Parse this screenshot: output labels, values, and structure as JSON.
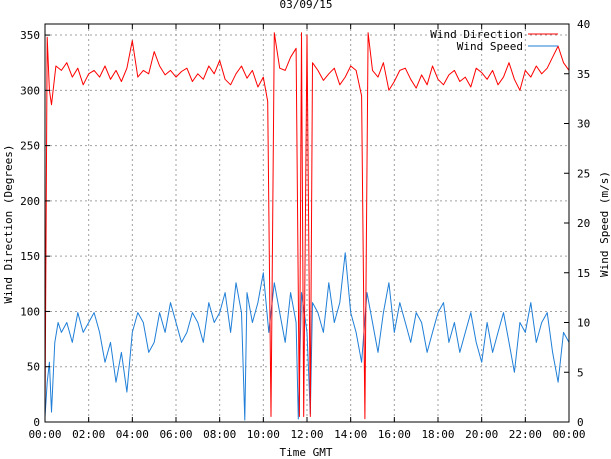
{
  "chart_data": {
    "type": "line",
    "title": "03/09/15",
    "xlabel": "Time GMT",
    "ylabel_left": "Wind Direction (Degrees)",
    "ylabel_right": "Wind Speed (m/s)",
    "x_tick_labels": [
      "00:00",
      "02:00",
      "04:00",
      "06:00",
      "08:00",
      "10:00",
      "12:00",
      "14:00",
      "16:00",
      "18:00",
      "20:00",
      "22:00",
      "00:00"
    ],
    "xlim_hours": [
      0,
      24
    ],
    "ylim_left": [
      0,
      360
    ],
    "y_ticks_left": [
      0,
      50,
      100,
      150,
      200,
      250,
      300,
      350
    ],
    "ylim_right": [
      0,
      40
    ],
    "y_ticks_right": [
      0,
      5,
      10,
      15,
      20,
      25,
      30,
      35,
      40
    ],
    "grid": true,
    "legend_position": "top-right",
    "series": [
      {
        "name": "Wind Direction",
        "color": "#ff0000",
        "axis": "left",
        "x_hours": [
          0.0,
          0.1,
          0.2,
          0.3,
          0.5,
          0.75,
          1.0,
          1.25,
          1.5,
          1.75,
          2.0,
          2.25,
          2.5,
          2.75,
          3.0,
          3.25,
          3.5,
          3.75,
          4.0,
          4.25,
          4.5,
          4.75,
          5.0,
          5.25,
          5.5,
          5.75,
          6.0,
          6.25,
          6.5,
          6.75,
          7.0,
          7.25,
          7.5,
          7.75,
          8.0,
          8.25,
          8.5,
          8.75,
          9.0,
          9.25,
          9.5,
          9.75,
          10.0,
          10.2,
          10.35,
          10.5,
          10.75,
          11.0,
          11.25,
          11.5,
          11.65,
          11.75,
          11.85,
          12.0,
          12.15,
          12.25,
          12.5,
          12.75,
          13.0,
          13.25,
          13.5,
          13.75,
          14.0,
          14.25,
          14.5,
          14.65,
          14.8,
          15.0,
          15.25,
          15.5,
          15.75,
          16.0,
          16.25,
          16.5,
          16.75,
          17.0,
          17.25,
          17.5,
          17.75,
          18.0,
          18.25,
          18.5,
          18.75,
          19.0,
          19.25,
          19.5,
          19.75,
          20.0,
          20.25,
          20.5,
          20.75,
          21.0,
          21.25,
          21.5,
          21.75,
          22.0,
          22.25,
          22.5,
          22.75,
          23.0,
          23.25,
          23.5,
          23.75,
          24.0
        ],
        "values": [
          5,
          348,
          300,
          287,
          322,
          318,
          325,
          312,
          320,
          305,
          315,
          318,
          312,
          322,
          310,
          318,
          308,
          320,
          345,
          312,
          318,
          315,
          335,
          322,
          314,
          318,
          312,
          317,
          320,
          308,
          315,
          310,
          322,
          315,
          327,
          310,
          305,
          315,
          322,
          311,
          318,
          303,
          312,
          290,
          5,
          352,
          320,
          318,
          330,
          338,
          5,
          352,
          5,
          350,
          5,
          325,
          318,
          309,
          315,
          320,
          305,
          312,
          322,
          318,
          295,
          3,
          352,
          318,
          312,
          325,
          300,
          308,
          318,
          320,
          310,
          302,
          314,
          305,
          322,
          310,
          305,
          314,
          318,
          308,
          312,
          303,
          320,
          316,
          310,
          318,
          305,
          312,
          325,
          310,
          300,
          318,
          312,
          322,
          315,
          320,
          330,
          340,
          325,
          318
        ]
      },
      {
        "name": "Wind Speed",
        "color": "#1f7fd8",
        "axis": "right",
        "x_hours": [
          0.0,
          0.1,
          0.2,
          0.3,
          0.45,
          0.6,
          0.75,
          1.0,
          1.25,
          1.5,
          1.75,
          2.0,
          2.25,
          2.5,
          2.75,
          3.0,
          3.25,
          3.5,
          3.75,
          4.0,
          4.25,
          4.5,
          4.75,
          5.0,
          5.25,
          5.5,
          5.75,
          6.0,
          6.25,
          6.5,
          6.75,
          7.0,
          7.25,
          7.5,
          7.75,
          8.0,
          8.25,
          8.5,
          8.75,
          9.0,
          9.15,
          9.25,
          9.5,
          9.75,
          10.0,
          10.25,
          10.5,
          10.75,
          11.0,
          11.25,
          11.5,
          11.6,
          11.75,
          12.0,
          12.15,
          12.25,
          12.5,
          12.75,
          13.0,
          13.25,
          13.5,
          13.75,
          14.0,
          14.25,
          14.5,
          14.75,
          15.0,
          15.25,
          15.5,
          15.75,
          16.0,
          16.25,
          16.5,
          16.75,
          17.0,
          17.25,
          17.5,
          17.75,
          18.0,
          18.25,
          18.5,
          18.75,
          19.0,
          19.25,
          19.5,
          19.75,
          20.0,
          20.25,
          20.5,
          20.75,
          21.0,
          21.25,
          21.5,
          21.75,
          22.0,
          22.25,
          22.5,
          22.75,
          23.0,
          23.25,
          23.5,
          23.75,
          24.0
        ],
        "values": [
          0.5,
          4,
          6,
          1,
          8,
          10,
          9,
          10,
          8,
          11,
          9,
          10,
          11,
          9,
          6,
          8,
          4,
          7,
          3,
          9,
          11,
          10,
          7,
          8,
          11,
          9,
          12,
          10,
          8,
          9,
          11,
          10,
          8,
          12,
          10,
          11,
          13,
          9,
          14,
          11,
          0.2,
          13,
          10,
          12,
          15,
          9,
          14,
          11,
          8,
          13,
          10,
          0.3,
          13,
          9,
          0.8,
          12,
          11,
          9,
          14,
          10,
          12,
          17,
          11,
          9,
          6,
          13,
          10,
          7,
          11,
          14,
          9,
          12,
          10,
          8,
          11,
          10,
          7,
          9,
          11,
          12,
          8,
          10,
          7,
          9,
          11,
          8,
          6,
          10,
          7,
          9,
          11,
          8,
          5,
          10,
          9,
          12,
          8,
          10,
          11,
          7,
          4,
          9,
          8
        ]
      }
    ]
  }
}
